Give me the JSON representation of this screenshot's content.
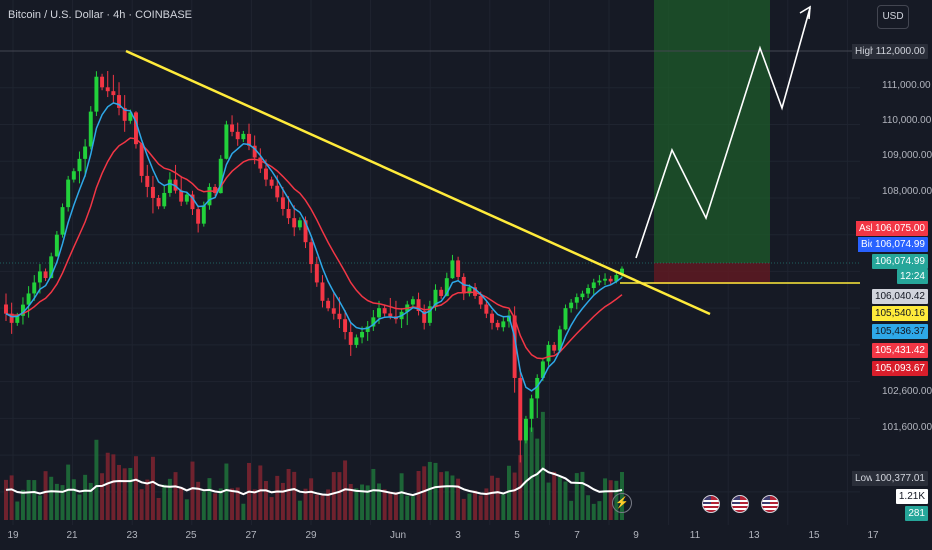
{
  "header": {
    "title": "Bitcoin / U.S. Dollar · 4h · COINBASE",
    "currency": "USD"
  },
  "chart_data": {
    "type": "candlestick",
    "symbol": "Bitcoin / U.S. Dollar",
    "timeframe": "4h",
    "exchange": "COINBASE",
    "y_ticks": [
      101600,
      102600,
      108000,
      109000,
      110000,
      111000
    ],
    "y_tick_labels": [
      "101,600.00",
      "102,600.00",
      "108,000.00",
      "109,000.00",
      "110,000.00",
      "111,000.00"
    ],
    "x_tick_labels": [
      "19",
      "21",
      "23",
      "25",
      "27",
      "29",
      "Jun",
      "3",
      "5",
      "7",
      "9",
      "11",
      "13",
      "15",
      "17"
    ],
    "price_labels": [
      {
        "tag": "High",
        "value": "112,000.00"
      },
      {
        "tag": "Ask",
        "value": "106,075.00"
      },
      {
        "tag": "Bid",
        "value": "106,074.99"
      },
      {
        "tag": "",
        "value": "106,074.99",
        "countdown": "12:24"
      },
      {
        "tag": "",
        "value": "106,040.42"
      },
      {
        "tag": "",
        "value": "105,540.16"
      },
      {
        "tag": "",
        "value": "105,436.37"
      },
      {
        "tag": "",
        "value": "105,431.42"
      },
      {
        "tag": "",
        "value": "105,093.67"
      },
      {
        "tag": "Low",
        "value": "100,377.01"
      }
    ],
    "volume_labels": [
      "1.21K",
      "281"
    ],
    "last_price": 106074.99,
    "high": 112000.0,
    "low": 100377.01,
    "candles_approx": [
      [
        105100,
        105700,
        104100,
        104600
      ],
      [
        104600,
        105800,
        104200,
        105400
      ],
      [
        105400,
        106400,
        104900,
        106000
      ],
      [
        106000,
        107200,
        105800,
        107000
      ],
      [
        107000,
        108700,
        106800,
        108500
      ],
      [
        108500,
        109800,
        107900,
        109400
      ],
      [
        109400,
        111600,
        109200,
        111300
      ],
      [
        111300,
        111900,
        110400,
        110800
      ],
      [
        110800,
        111500,
        109600,
        110100
      ],
      [
        110100,
        110400,
        108300,
        108600
      ],
      [
        108600,
        109200,
        107300,
        108000
      ],
      [
        108000,
        108900,
        107600,
        108500
      ],
      [
        108500,
        109300,
        107700,
        107900
      ],
      [
        107900,
        108300,
        106900,
        107300
      ],
      [
        107300,
        108500,
        107100,
        108300
      ],
      [
        108300,
        110200,
        108100,
        110000
      ],
      [
        110000,
        110500,
        109300,
        109600
      ],
      [
        109600,
        110300,
        108800,
        109100
      ],
      [
        109100,
        109600,
        108200,
        108500
      ],
      [
        108500,
        108900,
        107400,
        107700
      ],
      [
        107700,
        108400,
        106800,
        107200
      ],
      [
        107200,
        107600,
        105800,
        106200
      ],
      [
        106200,
        106600,
        104900,
        105200
      ],
      [
        105200,
        105900,
        104300,
        104700
      ],
      [
        104700,
        105200,
        103500,
        104000
      ],
      [
        104000,
        104800,
        103800,
        104500
      ],
      [
        104500,
        105400,
        104200,
        105000
      ],
      [
        105000,
        105700,
        104500,
        104700
      ],
      [
        104700,
        105300,
        104100,
        105100
      ],
      [
        105100,
        105600,
        104300,
        104600
      ],
      [
        104600,
        105800,
        104400,
        105500
      ],
      [
        105500,
        106600,
        105300,
        106300
      ],
      [
        106300,
        106500,
        105100,
        105400
      ],
      [
        105400,
        105800,
        104900,
        105100
      ],
      [
        105100,
        105300,
        104300,
        104600
      ],
      [
        104600,
        105100,
        104200,
        104800
      ],
      [
        104800,
        105300,
        100400,
        101400
      ],
      [
        101400,
        103300,
        101100,
        103100
      ],
      [
        103100,
        104200,
        102900,
        104000
      ],
      [
        104000,
        105200,
        103800,
        105000
      ],
      [
        105000,
        105500,
        104700,
        105300
      ],
      [
        105300,
        105900,
        105100,
        105700
      ],
      [
        105700,
        106100,
        105500,
        105800
      ],
      [
        105800,
        106200,
        105600,
        106075
      ]
    ],
    "projection_path_approx": [
      106075,
      108900,
      107900,
      112000,
      110600,
      112600
    ],
    "trendline": {
      "from": "22 May",
      "to": "~9 Jun",
      "color": "#ffeb3b"
    },
    "long_position_zone": {
      "target_top": 113000,
      "entry": 106075,
      "stop": 105700
    }
  }
}
